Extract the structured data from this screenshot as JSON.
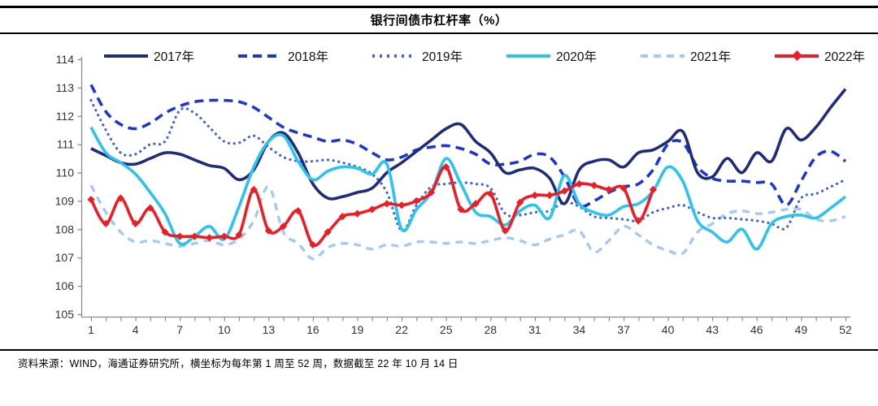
{
  "header": {
    "title": "银行间债市杠杆率（%）"
  },
  "footer": {
    "source": "资料来源：WIND，海通证券研究所，横坐标为每年第 1 周至 52 周，数据截至 22 年 10 月 14 日"
  },
  "chart_data": {
    "type": "line",
    "title": "银行间债市杠杆率（%）",
    "xlabel": "",
    "ylabel": "",
    "x_range": [
      1,
      52
    ],
    "ylim": [
      105,
      114
    ],
    "grid": false,
    "legend_position": "top",
    "y_ticks": [
      105,
      106,
      107,
      108,
      109,
      110,
      111,
      112,
      113,
      114
    ],
    "x_tick_labels": [
      1,
      4,
      7,
      10,
      13,
      16,
      19,
      22,
      25,
      28,
      31,
      34,
      37,
      40,
      43,
      46,
      49,
      52
    ],
    "axis_color": "#8c8c8c",
    "series": [
      {
        "name": "2017年",
        "color": "#1F2C7C",
        "style": "solid",
        "width": 3.6,
        "x_start": 1,
        "values": [
          110.85,
          110.6,
          110.35,
          110.3,
          110.5,
          110.7,
          110.65,
          110.45,
          110.25,
          110.15,
          109.75,
          110.1,
          111.1,
          111.4,
          110.7,
          109.6,
          109.1,
          109.15,
          109.3,
          109.45,
          110.0,
          110.35,
          110.75,
          111.15,
          111.55,
          111.7,
          111.1,
          110.7,
          110.0,
          110.1,
          110.15,
          109.8,
          108.9,
          110.1,
          110.4,
          110.45,
          110.2,
          110.7,
          110.8,
          111.1,
          111.45,
          110.0,
          109.85,
          110.5,
          110.0,
          110.7,
          110.4,
          111.55,
          111.15,
          111.6,
          112.3,
          112.95
        ]
      },
      {
        "name": "2018年",
        "color": "#1C36D6",
        "style": "dashed",
        "dash": "11 7",
        "width": 3.6,
        "x_start": 1,
        "values": [
          113.1,
          112.15,
          111.7,
          111.55,
          111.75,
          112.1,
          112.35,
          112.5,
          112.55,
          112.55,
          112.5,
          112.3,
          111.95,
          111.6,
          111.4,
          111.25,
          111.1,
          111.15,
          111.0,
          110.7,
          110.45,
          110.55,
          110.8,
          110.9,
          110.95,
          110.85,
          110.65,
          110.3,
          110.3,
          110.4,
          110.65,
          110.55,
          109.85,
          108.85,
          109.0,
          109.3,
          109.5,
          109.6,
          110.1,
          111.0,
          111.05,
          110.2,
          109.8,
          109.7,
          109.7,
          109.65,
          109.6,
          108.85,
          109.7,
          110.55,
          110.75,
          110.4
        ]
      },
      {
        "name": "2019年",
        "color": "#3F62E4",
        "style": "dotted",
        "dash": "0.1 6.6",
        "width": 3.2,
        "x_start": 1,
        "values": [
          112.55,
          111.5,
          110.7,
          110.65,
          111.0,
          111.1,
          112.2,
          112.1,
          111.6,
          111.1,
          111.05,
          111.3,
          110.9,
          110.55,
          110.4,
          110.4,
          110.45,
          110.35,
          110.2,
          109.95,
          109.3,
          107.95,
          108.85,
          109.5,
          109.6,
          109.65,
          109.6,
          109.45,
          108.55,
          108.5,
          108.6,
          108.65,
          108.95,
          108.8,
          108.45,
          108.4,
          108.35,
          108.3,
          108.6,
          108.75,
          108.85,
          108.6,
          108.4,
          108.4,
          108.35,
          108.3,
          108.2,
          108.05,
          109.1,
          109.25,
          109.5,
          109.75
        ]
      },
      {
        "name": "2020年",
        "color": "#2BC4EF",
        "style": "solid",
        "width": 3.6,
        "x_start": 1,
        "values": [
          111.6,
          110.7,
          110.35,
          109.95,
          109.3,
          108.55,
          107.5,
          107.75,
          108.1,
          107.65,
          108.8,
          110.2,
          111.1,
          111.3,
          110.4,
          109.75,
          110.05,
          110.2,
          110.15,
          109.95,
          110.3,
          108.0,
          108.7,
          109.3,
          110.5,
          109.6,
          108.6,
          108.45,
          108.15,
          108.65,
          108.85,
          108.4,
          109.9,
          108.9,
          108.6,
          108.5,
          108.8,
          108.9,
          109.35,
          110.2,
          109.7,
          108.3,
          107.9,
          107.55,
          108.0,
          107.3,
          108.2,
          108.45,
          108.5,
          108.4,
          108.75,
          109.15
        ]
      },
      {
        "name": "2021年",
        "color": "#A6C9F3",
        "style": "dashed",
        "dash": "9 7",
        "width": 3.4,
        "x_start": 1,
        "values": [
          109.55,
          108.6,
          107.9,
          107.55,
          107.6,
          107.5,
          107.4,
          107.5,
          107.6,
          107.45,
          107.65,
          108.3,
          109.5,
          107.9,
          107.5,
          106.95,
          107.35,
          107.5,
          107.45,
          107.3,
          107.45,
          107.4,
          107.55,
          107.55,
          107.5,
          107.55,
          107.5,
          107.6,
          107.7,
          107.6,
          107.45,
          107.65,
          107.8,
          107.95,
          107.2,
          107.6,
          108.1,
          107.8,
          107.45,
          107.25,
          107.15,
          107.9,
          108.2,
          108.55,
          108.65,
          108.55,
          108.6,
          108.7,
          108.7,
          108.35,
          108.3,
          108.45
        ]
      },
      {
        "name": "2022年",
        "color": "#EE1C25",
        "style": "solid-diamond",
        "width": 3.6,
        "x_start": 1,
        "values": [
          109.05,
          108.2,
          109.1,
          108.2,
          108.75,
          107.9,
          107.75,
          107.75,
          107.7,
          107.75,
          107.8,
          109.4,
          107.95,
          108.1,
          108.65,
          107.45,
          107.9,
          108.45,
          108.55,
          108.7,
          108.9,
          108.85,
          109.0,
          109.3,
          110.2,
          108.7,
          108.9,
          109.25,
          107.95,
          108.95,
          109.2,
          109.2,
          109.35,
          109.6,
          109.55,
          109.4,
          109.45,
          108.3,
          109.4
        ]
      }
    ]
  }
}
